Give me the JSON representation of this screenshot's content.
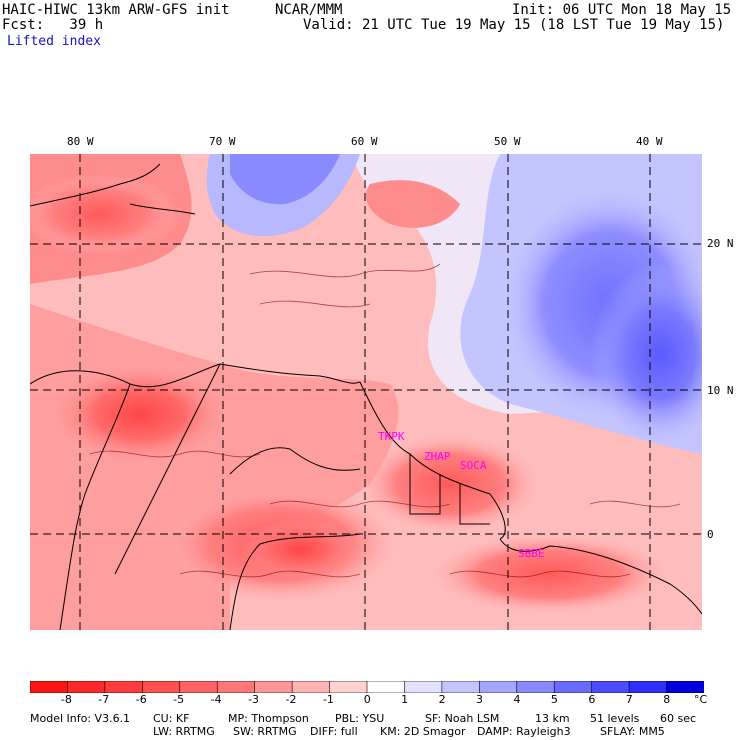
{
  "header": {
    "model": "HAIC-HIWC 13km ARW-GFS init",
    "center": "NCAR/MMM",
    "init": "Init: 06 UTC Mon 18 May 15",
    "fcst": "Fcst:   39 h",
    "valid": "Valid: 21 UTC Tue 19 May 15 (18 LST Tue 19 May 15)",
    "field": "Lifted index"
  },
  "axes": {
    "lon_labels": [
      "80 W",
      "70 W",
      "60 W",
      "50 W",
      "40 W"
    ],
    "lat_labels": [
      "20 N",
      "10 N",
      "0"
    ]
  },
  "stations": [
    "TKPK",
    "ZHAP",
    "SOCA",
    "SBBE"
  ],
  "colorbar": {
    "labels": [
      "-8",
      "-7",
      "-6",
      "-5",
      "-4",
      "-3",
      "-2",
      "-1",
      "0",
      "1",
      "2",
      "3",
      "4",
      "5",
      "6",
      "7",
      "8"
    ],
    "unit": "°C",
    "colors": [
      "#ff1414",
      "#ff2828",
      "#ff3c3c",
      "#ff5050",
      "#ff6464",
      "#ff7878",
      "#ff9696",
      "#ffb4b4",
      "#ffd2d2",
      "#ffffff",
      "#e2e2ff",
      "#c4c4ff",
      "#a6a6ff",
      "#8888ff",
      "#6a6aff",
      "#4c4cff",
      "#2e2eff",
      "#0000dc"
    ]
  },
  "footer": {
    "line1": [
      "Model Info: V3.6.1",
      "CU: KF",
      "MP: Thompson",
      "PBL: YSU",
      "SF: Noah LSM",
      "13 km",
      "51 levels",
      "60 sec"
    ],
    "line2": [
      "LW: RRTMG",
      "SW: RRTMG",
      "DIFF: full",
      "KM: 2D Smagor",
      "DAMP: Rayleigh3",
      "SFLAY: MM5"
    ]
  }
}
